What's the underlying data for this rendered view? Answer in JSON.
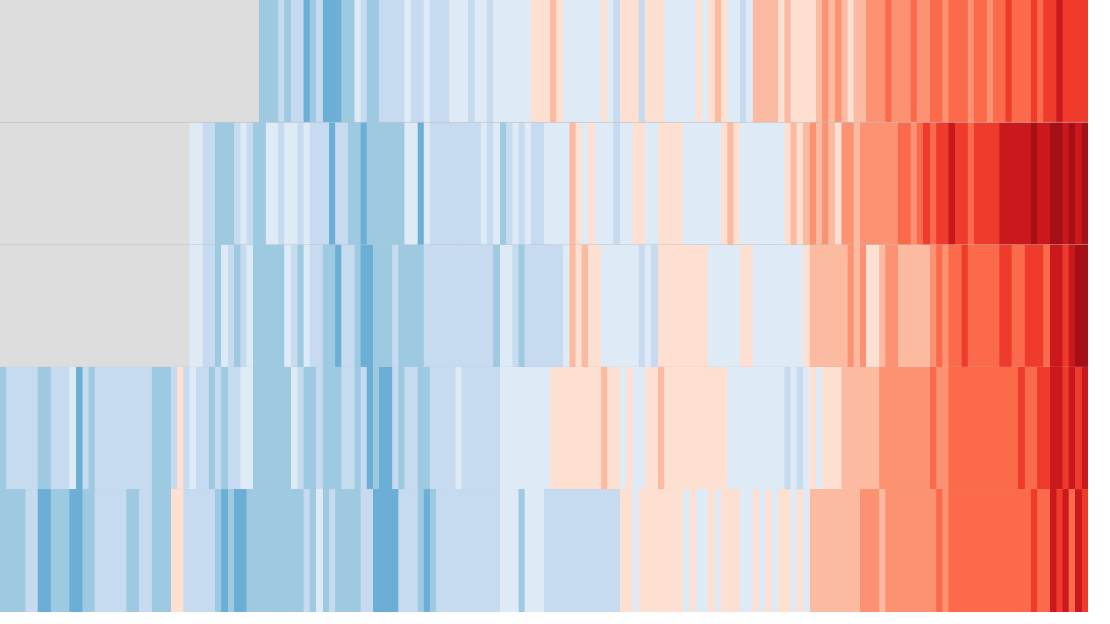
{
  "chart_data": {
    "type": "stripes",
    "vlim": [
      -4,
      6
    ],
    "colors": [
      "#6baed6",
      "#9ecae1",
      "#c6dbef",
      "#deebf7",
      "#fee0d2",
      "#fcbba1",
      "#fc9272",
      "#fb6a4a",
      "#ef3b2c",
      "#cb181d",
      "#a50f15"
    ],
    "missing_color": "#dddddd",
    "series": [
      {
        "values": [
          null,
          null,
          null,
          null,
          null,
          null,
          null,
          null,
          null,
          null,
          null,
          null,
          null,
          null,
          null,
          null,
          null,
          null,
          null,
          null,
          null,
          null,
          null,
          null,
          null,
          null,
          null,
          null,
          null,
          null,
          null,
          null,
          null,
          null,
          null,
          null,
          null,
          null,
          null,
          null,
          null,
          -3,
          -3,
          -3,
          -2,
          -3,
          -2,
          -2,
          -4,
          -3,
          -2,
          -4,
          -4,
          -4,
          -3,
          -3,
          -1,
          -2,
          -3,
          -3,
          -2,
          -2,
          -2,
          -2,
          -1,
          -2,
          -2,
          -1,
          -2,
          -2,
          -2,
          -1,
          -1,
          -1,
          -2,
          -1,
          -1,
          -2,
          -1,
          -1,
          -1,
          -1,
          -1,
          -1,
          0,
          0,
          0,
          1,
          0,
          -1,
          -1,
          -1,
          -1,
          -1,
          -1,
          0,
          -1,
          -2,
          0,
          0,
          0,
          -2,
          0,
          0,
          0,
          -1,
          -1,
          -1,
          -1,
          -1,
          0,
          -1,
          0,
          1,
          0,
          -1,
          -1,
          -2,
          -1,
          1,
          1,
          1,
          1,
          0,
          1,
          0,
          0,
          0,
          0,
          1,
          2,
          1,
          2,
          1,
          0,
          1,
          1,
          2,
          2,
          2,
          3,
          2,
          2,
          2,
          3,
          2,
          2,
          3,
          3,
          2,
          3,
          3,
          3,
          2,
          3,
          3,
          2,
          3,
          3,
          4,
          3,
          3,
          3,
          4,
          3,
          4,
          4,
          5,
          4,
          4,
          4,
          4
        ]
      },
      {
        "values": [
          null,
          null,
          null,
          null,
          null,
          null,
          null,
          null,
          null,
          null,
          null,
          null,
          null,
          null,
          null,
          null,
          null,
          null,
          null,
          null,
          null,
          null,
          null,
          null,
          null,
          null,
          null,
          null,
          null,
          null,
          -1,
          -1,
          -2,
          -2,
          -3,
          -3,
          -3,
          -2,
          -1,
          -2,
          -3,
          -3,
          -1,
          -1,
          -2,
          -1,
          -1,
          -2,
          -1,
          -2,
          -2,
          -2,
          -4,
          -2,
          -2,
          -3,
          -3,
          -4,
          -3,
          -3,
          -3,
          -3,
          -3,
          -3,
          -1,
          -1,
          -4,
          -1,
          -2,
          -2,
          -2,
          -2,
          -2,
          -2,
          -2,
          -2,
          -1,
          -2,
          -1,
          -3,
          -2,
          -1,
          -2,
          -1,
          -2,
          -2,
          -1,
          -1,
          -1,
          -1,
          1,
          0,
          -1,
          0,
          -1,
          -1,
          -1,
          -2,
          -1,
          -1,
          0,
          0,
          -1,
          -1,
          0,
          0,
          0,
          0,
          -1,
          -1,
          -1,
          -1,
          -1,
          -1,
          0,
          1,
          0,
          -1,
          -1,
          -1,
          -1,
          -1,
          -1,
          -1,
          0,
          1,
          0,
          1,
          2,
          1,
          2,
          1,
          0,
          2,
          2,
          1,
          2,
          2,
          2,
          2,
          2,
          2,
          3,
          3,
          2,
          3,
          4,
          3,
          4,
          4,
          5,
          4,
          4,
          3,
          4,
          4,
          4,
          4,
          5,
          5,
          5,
          5,
          5,
          6,
          5,
          5,
          6,
          6,
          5,
          6,
          5,
          6
        ]
      },
      {
        "values": [
          null,
          null,
          null,
          null,
          null,
          null,
          null,
          null,
          null,
          null,
          null,
          null,
          null,
          null,
          null,
          null,
          null,
          null,
          null,
          null,
          null,
          null,
          null,
          null,
          null,
          null,
          null,
          null,
          null,
          null,
          -1,
          -1,
          -2,
          -2,
          -3,
          -1,
          -2,
          -3,
          -2,
          -1,
          -3,
          -3,
          -3,
          -3,
          -3,
          -1,
          -2,
          -3,
          -1,
          -2,
          -2,
          -3,
          -3,
          -4,
          -2,
          -2,
          -3,
          -4,
          -4,
          -3,
          -3,
          -3,
          -2,
          -3,
          -3,
          -3,
          -3,
          -2,
          -2,
          -2,
          -2,
          -2,
          -2,
          -2,
          -2,
          -2,
          -2,
          -2,
          -3,
          -1,
          -1,
          -2,
          -3,
          -2,
          -2,
          -2,
          -2,
          -2,
          -2,
          -1,
          1,
          0,
          1,
          0,
          0,
          -1,
          -1,
          -1,
          -1,
          -1,
          -1,
          -2,
          -1,
          -2,
          0,
          0,
          0,
          0,
          0,
          0,
          0,
          0,
          -1,
          -1,
          -1,
          -1,
          -1,
          0,
          0,
          -1,
          -1,
          -1,
          -1,
          -1,
          -1,
          -1,
          -1,
          0,
          1,
          1,
          1,
          1,
          1,
          1,
          2,
          1,
          2,
          0,
          0,
          1,
          2,
          2,
          1,
          1,
          1,
          1,
          1,
          2,
          3,
          2,
          3,
          3,
          4,
          3,
          3,
          3,
          3,
          3,
          4,
          4,
          3,
          3,
          4,
          4,
          4,
          3,
          5,
          5,
          4,
          5,
          6,
          6
        ]
      },
      {
        "values": [
          -3,
          -2,
          -2,
          -2,
          -2,
          -2,
          -3,
          -3,
          -2,
          -2,
          -2,
          -1,
          -4,
          -2,
          -3,
          -2,
          -2,
          -2,
          -2,
          -2,
          -2,
          -2,
          -2,
          -2,
          -3,
          -3,
          -3,
          -2,
          0,
          -2,
          -1,
          -2,
          -2,
          -3,
          -2,
          -3,
          -2,
          -2,
          -1,
          -1,
          -3,
          -3,
          -3,
          -3,
          -3,
          -3,
          -1,
          -2,
          -3,
          -3,
          -2,
          -3,
          -3,
          -3,
          -2,
          -2,
          -3,
          -2,
          -4,
          -3,
          -4,
          -4,
          -2,
          -3,
          -2,
          -2,
          -3,
          -3,
          -2,
          -2,
          -2,
          -2,
          -1,
          -2,
          -2,
          -2,
          -2,
          -2,
          -2,
          -1,
          -1,
          -1,
          -1,
          -1,
          -1,
          -1,
          -1,
          0,
          0,
          0,
          0,
          0,
          0,
          0,
          0,
          1,
          0,
          0,
          -1,
          0,
          -1,
          -1,
          0,
          0,
          1,
          0,
          0,
          0,
          0,
          0,
          0,
          0,
          0,
          0,
          0,
          -1,
          -1,
          -1,
          -1,
          -1,
          -1,
          -1,
          -1,
          -1,
          -2,
          -1,
          -2,
          -1,
          0,
          -1,
          0,
          0,
          0,
          1,
          1,
          1,
          1,
          1,
          1,
          2,
          2,
          2,
          2,
          2,
          2,
          2,
          2,
          3,
          2,
          2,
          3,
          3,
          3,
          3,
          3,
          3,
          3,
          3,
          3,
          3,
          3,
          4,
          3,
          3,
          4,
          4,
          5,
          5,
          4,
          5,
          4,
          5
        ]
      },
      {
        "values": [
          -3,
          -3,
          -3,
          -3,
          -2,
          -2,
          -4,
          -4,
          -3,
          -3,
          -3,
          -4,
          -4,
          -3,
          -3,
          -2,
          -2,
          -2,
          -2,
          -2,
          -3,
          -3,
          -2,
          -2,
          -3,
          -3,
          -3,
          0,
          0,
          -2,
          -2,
          -2,
          -2,
          -2,
          -3,
          -4,
          -3,
          -4,
          -4,
          -3,
          -3,
          -3,
          -3,
          -3,
          -3,
          -3,
          -3,
          -3,
          -2,
          -3,
          -1,
          -3,
          -2,
          -3,
          -3,
          -3,
          -3,
          -2,
          -2,
          -4,
          -4,
          -4,
          -4,
          -2,
          -2,
          -2,
          -3,
          -4,
          -3,
          -2,
          -2,
          -2,
          -2,
          -2,
          -2,
          -2,
          -2,
          -2,
          -2,
          -1,
          -1,
          -1,
          -3,
          -1,
          -1,
          -1,
          -2,
          -2,
          -2,
          -2,
          -2,
          -2,
          -2,
          -2,
          -2,
          -2,
          -2,
          -2,
          0,
          0,
          -1,
          0,
          0,
          0,
          0,
          0,
          0,
          0,
          -1,
          0,
          -1,
          -1,
          0,
          -1,
          0,
          0,
          0,
          -1,
          -1,
          0,
          -1,
          0,
          -1,
          0,
          0,
          -1,
          0,
          -1,
          1,
          1,
          1,
          1,
          1,
          1,
          1,
          1,
          2,
          2,
          2,
          1,
          2,
          2,
          2,
          2,
          2,
          2,
          2,
          2,
          3,
          2,
          3,
          3,
          3,
          3,
          3,
          3,
          3,
          3,
          3,
          3,
          3,
          3,
          3,
          4,
          3,
          3,
          5,
          4,
          5,
          3,
          5,
          4
        ]
      }
    ]
  }
}
